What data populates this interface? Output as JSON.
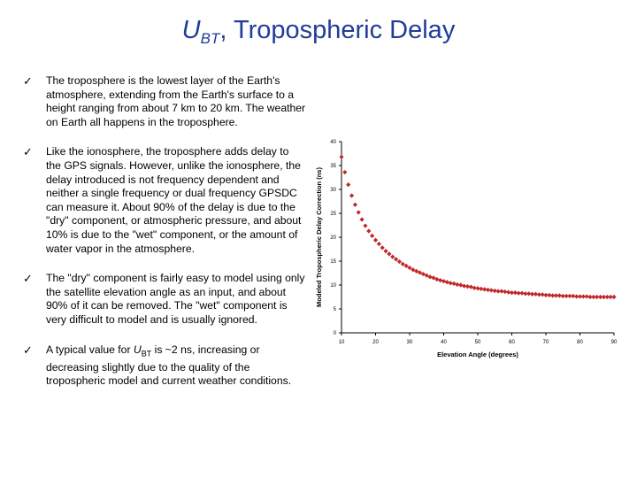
{
  "slide": {
    "title_main": "U",
    "title_sub": "BT",
    "title_rest": ", Tropospheric Delay",
    "check_glyph": "✓",
    "bullets": [
      "The troposphere is the lowest layer of the Earth's atmosphere, extending from the Earth's surface to a height ranging from about 7 km to 20 km.  The weather on Earth all happens in the troposphere.",
      "Like the ionosphere, the troposphere adds delay to the GPS signals.  However, unlike the ionosphere, the delay introduced is not frequency dependent and neither a single frequency or dual frequency GPSDC can measure it.  About 90% of the delay is due to the \"dry\" component, or atmospheric pressure, and about 10% is due to the \"wet\" component, or the amount of water vapor in the atmosphere.",
      "The \"dry\" component is fairly easy to model using only the satellite elevation angle as an input, and about 90% of it can be removed.  The \"wet\" component is very difficult to model and is usually ignored."
    ],
    "bullet4": {
      "before": "A typical value for ",
      "var": "U",
      "sub": "BT",
      "after": " is ~2 ns, increasing or decreasing slightly due to the quality of the tropospheric model and current weather conditions."
    }
  },
  "chart_data": {
    "type": "scatter",
    "xlabel": "Elevation Angle (degrees)",
    "ylabel": "Modeled Tropospheric Delay Correction (ns)",
    "xlim": [
      10,
      90
    ],
    "ylim": [
      0,
      40
    ],
    "xticks": [
      "10",
      "20",
      "30",
      "40",
      "50",
      "60",
      "70",
      "80",
      "90"
    ],
    "yticks": [
      "0",
      "5",
      "10",
      "15",
      "20",
      "25",
      "30",
      "35",
      "40"
    ],
    "grid": false,
    "marker_color": "#c0282a",
    "series": [
      {
        "x": [
          10,
          11,
          12,
          13,
          14,
          15,
          16,
          17,
          18,
          19,
          20,
          21,
          22,
          23,
          24,
          25,
          26,
          27,
          28,
          29,
          30,
          31,
          32,
          33,
          34,
          35,
          36,
          37,
          38,
          39,
          40,
          41,
          42,
          43,
          44,
          45,
          46,
          47,
          48,
          49,
          50,
          51,
          52,
          53,
          54,
          55,
          56,
          57,
          58,
          59,
          60,
          61,
          62,
          63,
          64,
          65,
          66,
          67,
          68,
          69,
          70,
          71,
          72,
          73,
          74,
          75,
          76,
          77,
          78,
          79,
          80,
          81,
          82,
          83,
          84,
          85,
          86,
          87,
          88,
          89,
          90
        ],
        "y": [
          36.8,
          33.6,
          31.0,
          28.7,
          26.8,
          25.2,
          23.7,
          22.4,
          21.3,
          20.3,
          19.4,
          18.6,
          17.8,
          17.1,
          16.5,
          15.9,
          15.4,
          14.9,
          14.4,
          14.0,
          13.6,
          13.2,
          12.9,
          12.6,
          12.3,
          12.0,
          11.7,
          11.5,
          11.2,
          11.0,
          10.8,
          10.6,
          10.4,
          10.3,
          10.1,
          10.0,
          9.8,
          9.7,
          9.6,
          9.4,
          9.3,
          9.2,
          9.1,
          9.0,
          8.9,
          8.8,
          8.7,
          8.7,
          8.6,
          8.5,
          8.4,
          8.4,
          8.3,
          8.3,
          8.2,
          8.2,
          8.1,
          8.1,
          8.0,
          8.0,
          7.9,
          7.9,
          7.8,
          7.8,
          7.8,
          7.7,
          7.7,
          7.7,
          7.7,
          7.6,
          7.6,
          7.6,
          7.6,
          7.5,
          7.5,
          7.5,
          7.5,
          7.5,
          7.5,
          7.5,
          7.5
        ]
      }
    ]
  }
}
